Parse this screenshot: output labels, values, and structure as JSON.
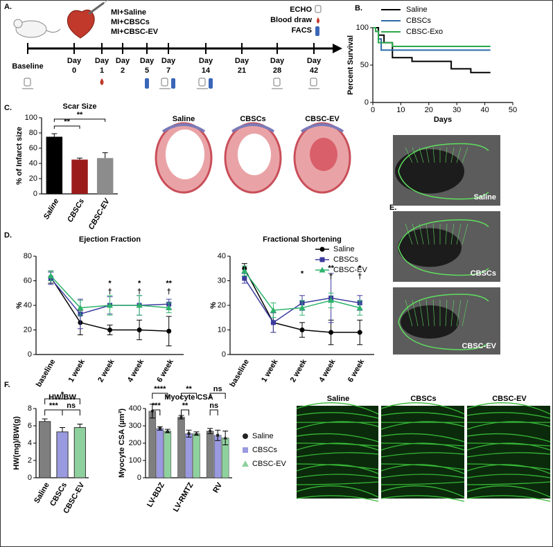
{
  "figure": {
    "panel_labels": [
      "A.",
      "B.",
      "C.",
      "D.",
      "E.",
      "F."
    ]
  },
  "timeline": {
    "treatments": [
      "MI+Saline",
      "MI+CBSCs",
      "MI+CBSC-EV"
    ],
    "assays": [
      "ECHO",
      "Blood draw",
      "FACS"
    ],
    "baseline": "Baseline",
    "day_label": "Day",
    "days": [
      0,
      1,
      2,
      5,
      7,
      14,
      21,
      28,
      42
    ]
  },
  "chart_data": [
    {
      "type": "step",
      "ylabel": "Percent Survival",
      "xlabel": "Days",
      "xlim": [
        0,
        50
      ],
      "xticks": [
        0,
        10,
        20,
        30,
        40,
        50
      ],
      "ylim": [
        0,
        100
      ],
      "yticks": [
        0,
        50,
        100
      ],
      "series": [
        {
          "name": "Saline",
          "color": "#000000",
          "x": [
            0,
            2,
            4,
            7,
            14,
            28,
            35,
            42
          ],
          "values": [
            100,
            90,
            80,
            60,
            55,
            45,
            40,
            40
          ]
        },
        {
          "name": "CBSCs",
          "color": "#2a6aa8",
          "x": [
            0,
            1,
            2,
            3,
            42
          ],
          "values": [
            100,
            95,
            85,
            70,
            70
          ]
        },
        {
          "name": "CBSC-Exo",
          "color": "#2aa84a",
          "x": [
            0,
            1,
            2,
            7,
            42
          ],
          "values": [
            100,
            95,
            80,
            75,
            75
          ]
        }
      ]
    },
    {
      "type": "bar",
      "title": "Scar Size",
      "ylabel": "% of Infarct size",
      "categories": [
        "Saline",
        "CBSCs",
        "CBSC-EV"
      ],
      "values": [
        75,
        45,
        47
      ],
      "errors": [
        4,
        2,
        7
      ],
      "colors": [
        "#000000",
        "#9b1b1b",
        "#8c8c8c"
      ],
      "ylim": [
        0,
        100
      ],
      "yticks": [
        0,
        20,
        40,
        60,
        80,
        100
      ],
      "annotations": [
        "**",
        "**"
      ]
    },
    {
      "type": "line",
      "title": "Ejection Fraction",
      "ylabel": "%",
      "categories": [
        "baseline",
        "1 week",
        "2 week",
        "4 week",
        "6 week"
      ],
      "ylim": [
        0,
        80
      ],
      "yticks": [
        0,
        20,
        40,
        60,
        80
      ],
      "series": [
        {
          "color": "#000000",
          "marker": "circle",
          "values": [
            63,
            26,
            20,
            20,
            19
          ],
          "errors": [
            5,
            10,
            4,
            8,
            12
          ]
        },
        {
          "color": "#3b3b9e",
          "marker": "square",
          "values": [
            62,
            33,
            40,
            40,
            41
          ],
          "errors": [
            5,
            12,
            7,
            8,
            4
          ]
        },
        {
          "color": "#2db36b",
          "marker": "triangle",
          "values": [
            64,
            38,
            40,
            40,
            38
          ],
          "errors": [
            4,
            6,
            8,
            8,
            4
          ]
        }
      ],
      "annotations": [
        "*",
        "†",
        "*",
        "†",
        "**",
        "†"
      ]
    },
    {
      "type": "line",
      "title": "Fractional Shortening",
      "ylabel": "%",
      "categories": [
        "baseline",
        "1 week",
        "2 week",
        "4 week",
        "6 week"
      ],
      "ylim": [
        0,
        40
      ],
      "yticks": [
        0,
        10,
        20,
        30,
        40
      ],
      "series": [
        {
          "name": "Saline",
          "color": "#000000",
          "marker": "circle",
          "values": [
            35,
            13,
            10,
            9,
            9
          ],
          "errors": [
            2,
            4,
            3,
            5,
            5
          ]
        },
        {
          "name": "CBSCs",
          "color": "#3b3b9e",
          "marker": "square",
          "values": [
            31,
            13,
            21,
            23,
            21
          ],
          "errors": [
            2,
            4,
            3,
            10,
            3
          ]
        },
        {
          "name": "CBSC-EV",
          "color": "#2db36b",
          "marker": "triangle",
          "values": [
            34,
            18,
            19,
            22,
            19
          ],
          "errors": [
            2,
            3,
            3,
            3,
            3
          ]
        }
      ],
      "annotations": [
        "*",
        "**",
        "†",
        "*",
        "†"
      ]
    },
    {
      "type": "bar",
      "title": "HW/BW",
      "ylabel": "HW(mg)/BW(g)",
      "categories": [
        "Saline",
        "CBSCs",
        "CBSC-EV"
      ],
      "values": [
        6.5,
        5.3,
        5.8
      ],
      "errors": [
        0.3,
        0.5,
        0.4
      ],
      "colors": [
        "#7f7f7f",
        "#9a9ae0",
        "#8fd19e"
      ],
      "ylim": [
        0,
        8
      ],
      "yticks": [
        0,
        2,
        4,
        6,
        8
      ],
      "annotations": [
        "***",
        "ns",
        "*"
      ]
    },
    {
      "type": "grouped_bar",
      "title": "Myocyte CSA",
      "ylabel": "Myocyte CSA (µm²)",
      "categories": [
        "LV-BDZ",
        "LV-RMTZ",
        "RV"
      ],
      "ylim": [
        0,
        400
      ],
      "yticks": [
        0,
        100,
        200,
        300,
        400
      ],
      "series": [
        {
          "name": "Saline",
          "color": "#7f7f7f",
          "marker": "circle",
          "values": [
            385,
            350,
            270
          ],
          "errors": [
            40,
            10,
            15
          ]
        },
        {
          "name": "CBSCs",
          "color": "#9a9ae0",
          "marker": "square",
          "values": [
            285,
            255,
            245
          ],
          "errors": [
            10,
            20,
            30
          ]
        },
        {
          "name": "CBSC-EV",
          "color": "#8fd19e",
          "marker": "triangle",
          "values": [
            270,
            255,
            230
          ],
          "errors": [
            10,
            10,
            40
          ]
        }
      ],
      "annotations": [
        "****",
        "***",
        "**",
        "**",
        "ns",
        "ns"
      ]
    }
  ],
  "histology": {
    "labels": [
      "Saline",
      "CBSCs",
      "CBSC-EV"
    ]
  },
  "echo": {
    "labels": [
      "Saline",
      "CBSCs",
      "CBSC-EV"
    ]
  },
  "immunostain": {
    "labels": [
      "Saline",
      "CBSCs",
      "CBSC-EV"
    ]
  }
}
